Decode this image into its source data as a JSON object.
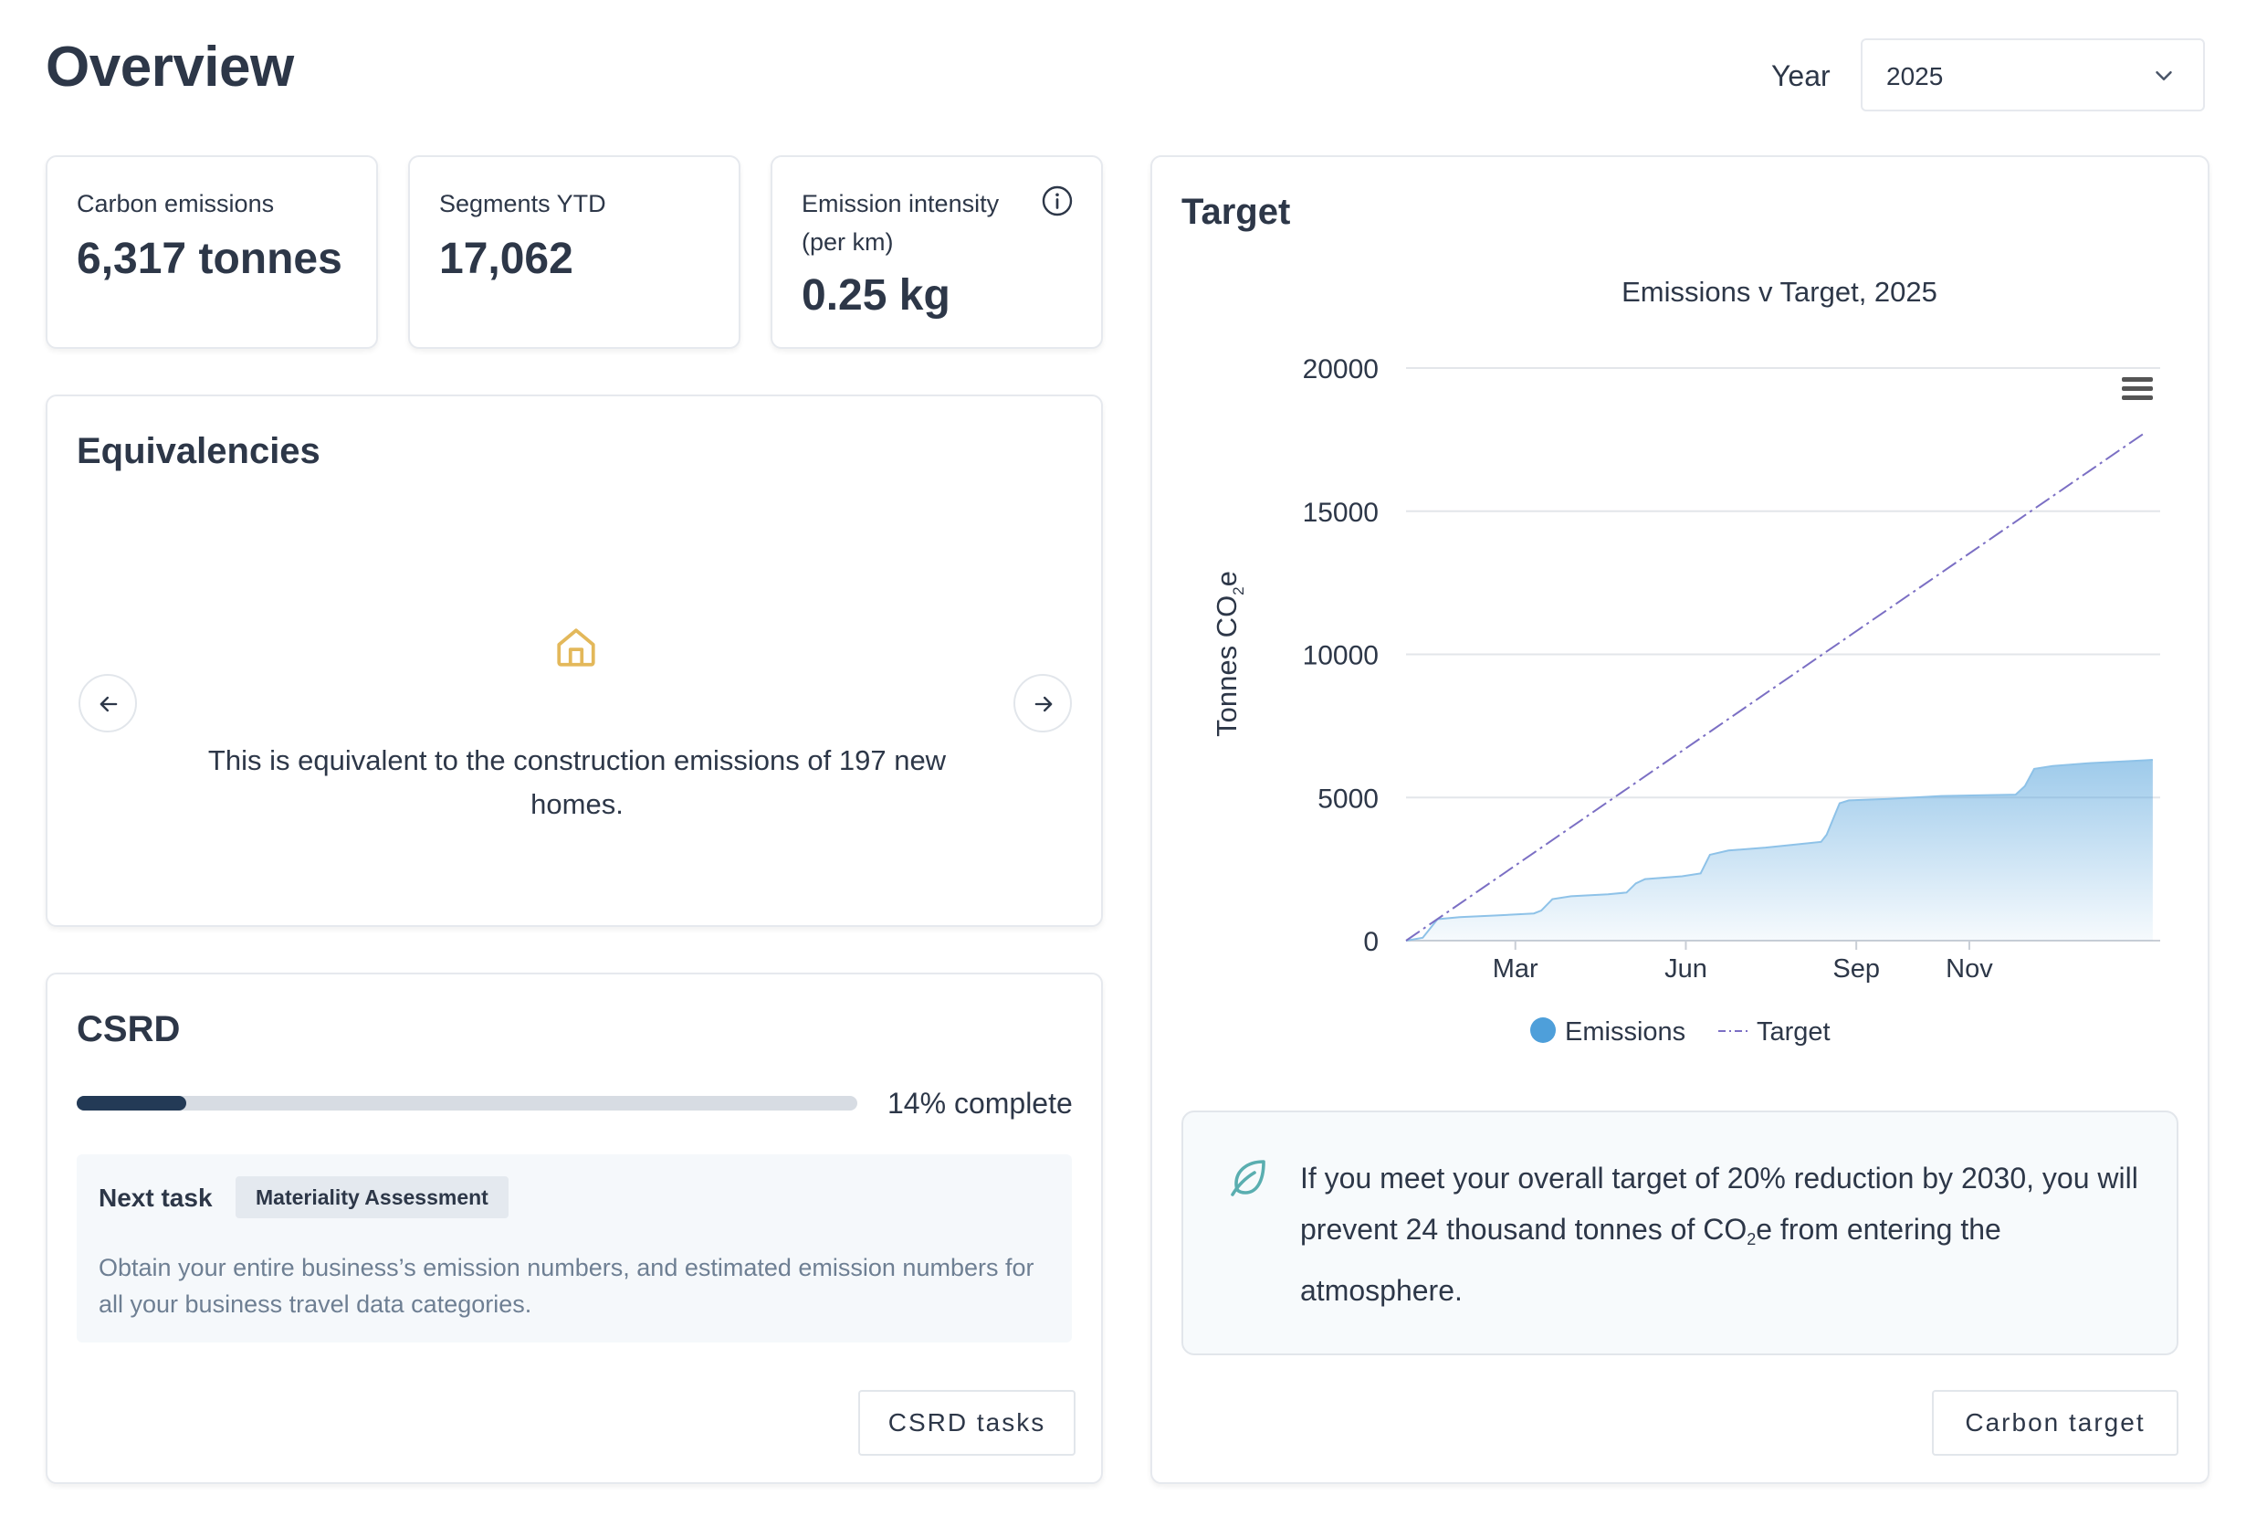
{
  "header": {
    "title": "Overview",
    "year_label": "Year",
    "year_value": "2025"
  },
  "kpis": [
    {
      "label": "Carbon emissions",
      "value": "6,317 tonnes"
    },
    {
      "label": "Segments YTD",
      "value": "17,062"
    },
    {
      "label_line1": "Emission intensity",
      "label_line2": "(per km)",
      "value": "0.25 kg"
    }
  ],
  "equivalencies": {
    "title": "Equivalencies",
    "text": "This is equivalent to the construction emissions of 197 new homes."
  },
  "csrd": {
    "title": "CSRD",
    "progress": 0.14,
    "progress_text": "14% complete",
    "next_task_label": "Next task",
    "next_task_badge": "Materiality Assessment",
    "next_task_desc": "Obtain your entire business’s emission numbers, and estimated emission numbers for all your business travel data categories.",
    "button": "CSRD tasks"
  },
  "target": {
    "title": "Target",
    "callout_part1": "If you meet your overall target of 20% reduction by 2030, you will prevent 24 thousand tonnes of CO",
    "callout_sub": "2",
    "callout_part2": "e from entering the atmosphere.",
    "button": "Carbon target"
  },
  "colors": {
    "emissions": "#4e9fda",
    "target": "#7b6fc4",
    "progress": "#233a56",
    "leaf": "#5aaeb0",
    "house": "#e3b85a"
  },
  "chart_data": {
    "type": "area",
    "title": "Emissions v Target, 2025",
    "ylabel_main": "Tonnes CO",
    "ylabel_sub": "2",
    "ylabel_end": "e",
    "ylim": [
      0,
      20000
    ],
    "y_ticks": [
      "0",
      "5000",
      "10000",
      "15000",
      "20000"
    ],
    "x_ticks": [
      {
        "label": "Mar",
        "day": 60
      },
      {
        "label": "Jun",
        "day": 152
      },
      {
        "label": "Sep",
        "day": 244
      },
      {
        "label": "Nov",
        "day": 305
      }
    ],
    "x_range_days": [
      1,
      408
    ],
    "series": [
      {
        "name": "Emissions",
        "style": "area",
        "points": [
          [
            1,
            0
          ],
          [
            10,
            100
          ],
          [
            18,
            750
          ],
          [
            30,
            820
          ],
          [
            50,
            880
          ],
          [
            70,
            950
          ],
          [
            74,
            1050
          ],
          [
            80,
            1450
          ],
          [
            90,
            1550
          ],
          [
            110,
            1620
          ],
          [
            120,
            1680
          ],
          [
            125,
            2000
          ],
          [
            130,
            2150
          ],
          [
            150,
            2250
          ],
          [
            160,
            2350
          ],
          [
            165,
            3000
          ],
          [
            175,
            3150
          ],
          [
            195,
            3250
          ],
          [
            210,
            3350
          ],
          [
            225,
            3450
          ],
          [
            228,
            3700
          ],
          [
            235,
            4800
          ],
          [
            240,
            4900
          ],
          [
            260,
            4950
          ],
          [
            290,
            5050
          ],
          [
            330,
            5100
          ],
          [
            335,
            5400
          ],
          [
            340,
            6000
          ],
          [
            350,
            6100
          ],
          [
            370,
            6200
          ],
          [
            400,
            6300
          ],
          [
            404,
            6317
          ]
        ]
      },
      {
        "name": "Target",
        "style": "dashdot",
        "points": [
          [
            1,
            0
          ],
          [
            400,
            17750
          ]
        ]
      }
    ],
    "legend": "bottom-center"
  }
}
